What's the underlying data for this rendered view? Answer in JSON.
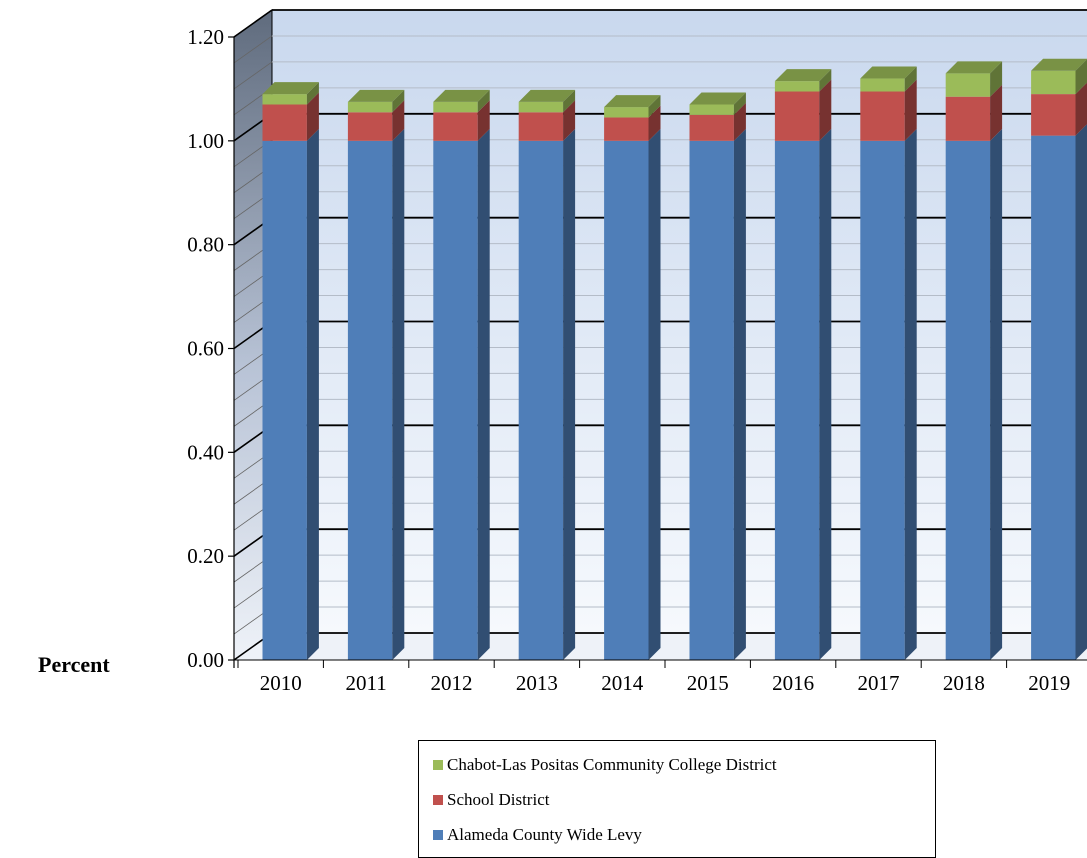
{
  "chart_data": {
    "type": "bar",
    "stacked": true,
    "three_d": true,
    "categories": [
      "2010",
      "2011",
      "2012",
      "2013",
      "2014",
      "2015",
      "2016",
      "2017",
      "2018",
      "2019"
    ],
    "series": [
      {
        "name": "Alameda County Wide Levy",
        "color": "#4F7EB8",
        "values": [
          1.0,
          1.0,
          1.0,
          1.0,
          1.0,
          1.0,
          1.0,
          1.0,
          1.0,
          1.01
        ]
      },
      {
        "name": "School District",
        "color": "#C0504D",
        "values": [
          0.07,
          0.055,
          0.055,
          0.055,
          0.045,
          0.05,
          0.095,
          0.095,
          0.085,
          0.08
        ]
      },
      {
        "name": "Chabot-Las Positas Community College District",
        "color": "#9BBB59",
        "values": [
          0.02,
          0.02,
          0.02,
          0.02,
          0.02,
          0.02,
          0.02,
          0.025,
          0.045,
          0.045
        ]
      }
    ],
    "ylabel": "Percent",
    "ylim": [
      0,
      1.2
    ],
    "yticks": [
      "0.00",
      "0.20",
      "0.40",
      "0.60",
      "0.80",
      "1.00",
      "1.20"
    ],
    "grid": true,
    "legend": {
      "placement": "bottom",
      "order": [
        "Chabot-Las Positas Community College District",
        "School District",
        "Alameda County Wide Levy"
      ]
    }
  }
}
